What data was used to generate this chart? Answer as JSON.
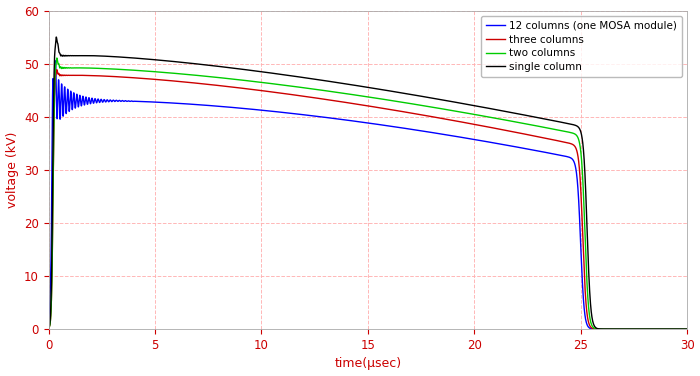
{
  "title": "",
  "xlabel": "time(μsec)",
  "ylabel": "voltage (kV)",
  "xlim": [
    0,
    30
  ],
  "ylim": [
    0,
    60
  ],
  "xticks": [
    0,
    5,
    10,
    15,
    20,
    25,
    30
  ],
  "yticks": [
    0,
    10,
    20,
    30,
    40,
    50,
    60
  ],
  "background_color": "#ffffff",
  "grid_color": "#ffb0b0",
  "axis_label_color": "#cc0000",
  "tick_color": "#cc0000",
  "legend_entries": [
    "two columns",
    "three columns",
    "12 columns (one MOSA module)",
    "single column"
  ],
  "legend_colors": [
    "#00cc00",
    "#cc0000",
    "#0000ff",
    "#000000"
  ],
  "line_width": 1.0
}
